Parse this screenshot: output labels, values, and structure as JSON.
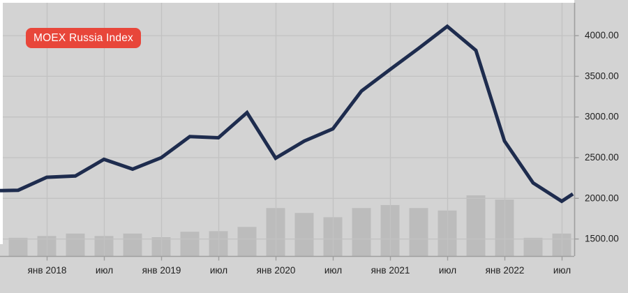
{
  "badge": {
    "label": "MOEX Russia Index",
    "bg_color": "#e8463a",
    "text_color": "#ffffff"
  },
  "colors": {
    "background": "#d3d3d3",
    "frame": "#ffffff",
    "grid": "#c2c2c2",
    "axis": "#9e9e9e",
    "bars": "#bcbcbc",
    "line": "#1e2c4e",
    "text": "#1f1f1f"
  },
  "chart_data": {
    "type": "line+bar",
    "title": "MOEX Russia Index",
    "legend_position": "top-left badge",
    "grid": true,
    "x_axis": {
      "unit": "quarter_index (0..19, one point per quarter, ticks every Jan and Jul)",
      "ticks": [
        {
          "q": 1,
          "label": "янв 2018"
        },
        {
          "q": 3,
          "label": "июл"
        },
        {
          "q": 5,
          "label": "янв 2019"
        },
        {
          "q": 7,
          "label": "июл"
        },
        {
          "q": 9,
          "label": "янв 2020"
        },
        {
          "q": 11,
          "label": "июл"
        },
        {
          "q": 13,
          "label": "янв 2021"
        },
        {
          "q": 15,
          "label": "июл"
        },
        {
          "q": 17,
          "label": "янв 2022"
        },
        {
          "q": 19,
          "label": "июл"
        }
      ]
    },
    "y_axis": {
      "side": "right",
      "min_label": 1500,
      "max_label": 4000,
      "step": 500,
      "visible_range": [
        1290,
        4400
      ],
      "ticks": [
        {
          "value": 4000,
          "label": "4000.00"
        },
        {
          "value": 3500,
          "label": "3500.00"
        },
        {
          "value": 3000,
          "label": "3000.00"
        },
        {
          "value": 2500,
          "label": "2500.00"
        },
        {
          "value": 2000,
          "label": "2000.00"
        },
        {
          "value": 1500,
          "label": "1500.00"
        }
      ]
    },
    "price_line": {
      "name": "MOEX Russia Index",
      "points": [
        {
          "q": -0.634,
          "value": 2090
        },
        {
          "q": 0,
          "value": 2095
        },
        {
          "q": 1,
          "value": 2255
        },
        {
          "q": 2,
          "value": 2270
        },
        {
          "q": 3,
          "value": 2475
        },
        {
          "q": 4,
          "value": 2355
        },
        {
          "q": 5,
          "value": 2495
        },
        {
          "q": 6,
          "value": 2755
        },
        {
          "q": 7,
          "value": 2740
        },
        {
          "q": 8,
          "value": 3050
        },
        {
          "q": 9,
          "value": 2490
        },
        {
          "q": 10,
          "value": 2700
        },
        {
          "q": 11,
          "value": 2850
        },
        {
          "q": 12,
          "value": 3315
        },
        {
          "q": 13,
          "value": 3580
        },
        {
          "q": 14,
          "value": 3840
        },
        {
          "q": 15,
          "value": 4110
        },
        {
          "q": 16,
          "value": 3815
        },
        {
          "q": 17,
          "value": 2700
        },
        {
          "q": 18,
          "value": 2185
        },
        {
          "q": 19,
          "value": 1960
        },
        {
          "q": 19.39,
          "value": 2050
        }
      ]
    },
    "volume_bars": {
      "name": "volume (no scale shown, relative heights, 100 = tallest)",
      "relative_heights": [
        30,
        33,
        37,
        33,
        37,
        31,
        40,
        41,
        48,
        79,
        71,
        64,
        79,
        84,
        79,
        75,
        100,
        93,
        30,
        37
      ]
    }
  }
}
